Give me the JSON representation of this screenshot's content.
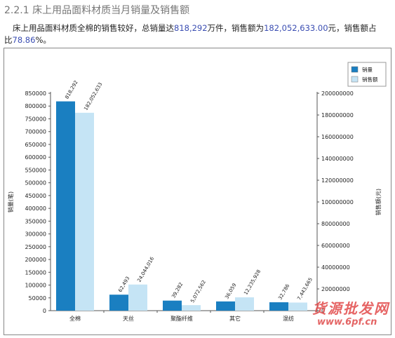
{
  "heading": "2.2.1 床上用品面料材质当月销量及销售额",
  "intro": {
    "part1": "床上用品面料材质全棉的销售较好，总销量达",
    "volume_total": "818,292",
    "part2": "万件，销售额为",
    "sales_total": "182,052,633.00",
    "part3": "元，销售额占",
    "part4": "比",
    "share": "78.86",
    "part5": "%。"
  },
  "watermark": {
    "name": "货源批发网",
    "url": "www.6pf.cn"
  },
  "chart_data": {
    "type": "bar",
    "categories": [
      "全棉",
      "天丝",
      "聚酯纤维",
      "其它",
      "混纺"
    ],
    "series": [
      {
        "name": "销量",
        "axis": "left",
        "color": "#1a7fc1",
        "values": [
          818292,
          62493,
          39282,
          36059,
          32786
        ],
        "labels": [
          "818,292",
          "62,493",
          "39,282",
          "36,059",
          "32,786"
        ]
      },
      {
        "name": "销售额",
        "axis": "right",
        "color": "#c5e4f5",
        "values": [
          182052633,
          24044016,
          5072562,
          12235928,
          7443665
        ],
        "labels": [
          "182,052,633",
          "24,044,016",
          "5,072,562",
          "12,235,928",
          "7,443,665"
        ]
      }
    ],
    "ylabel": "销量(笔)",
    "y2label": "销售额(元)",
    "ylim": [
      0,
      850000
    ],
    "y2lim": [
      0,
      200000000
    ],
    "yticks": [
      "0",
      "50000",
      "100000",
      "150000",
      "200000",
      "250000",
      "300000",
      "350000",
      "400000",
      "450000",
      "500000",
      "550000",
      "600000",
      "650000",
      "700000",
      "750000",
      "800000",
      "850000"
    ],
    "y2ticks": [
      "0",
      "20000000",
      "40000000",
      "60000000",
      "80000000",
      "100000000",
      "120000000",
      "140000000",
      "160000000",
      "180000000",
      "200000000"
    ],
    "legend": "top-right",
    "grid": false
  }
}
